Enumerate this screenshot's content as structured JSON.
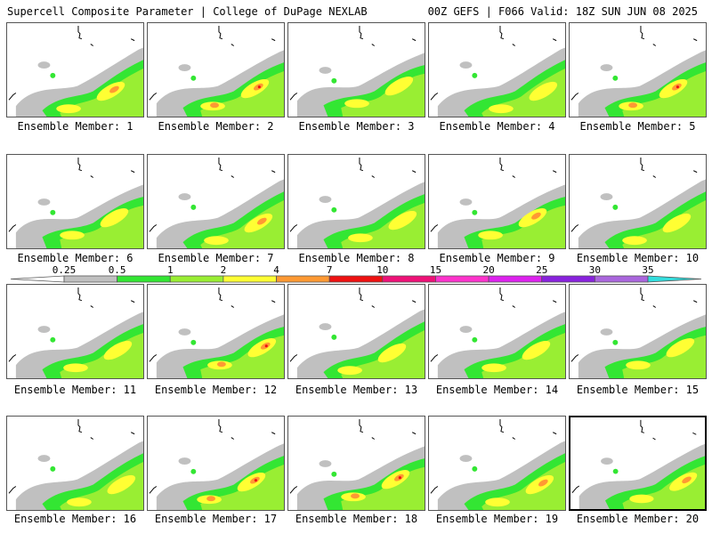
{
  "header": {
    "title_left": "Supercell Composite Parameter | College of DuPage NEXLAB",
    "title_right": "00Z GEFS | F066 Valid: 18Z SUN JUN 08 2025"
  },
  "colors": {
    "map_line": "#000000",
    "panel_border": "#555555",
    "selected_border": "#000000"
  },
  "legend": {
    "levels": [
      "0.25",
      "0.5",
      "1",
      "2",
      "4",
      "7",
      "10",
      "15",
      "20",
      "25",
      "30",
      "35"
    ],
    "colors": [
      "#ffffff",
      "#c0c0c0",
      "#33e633",
      "#99ee33",
      "#ffff33",
      "#ff9933",
      "#ee1111",
      "#ee1177",
      "#ff33cc",
      "#dd22ee",
      "#8822dd",
      "#aa66dd",
      "#33dddd"
    ]
  },
  "panels": [
    {
      "label": "Ensemble Member: 1",
      "selected": false,
      "intensity": 1
    },
    {
      "label": "Ensemble Member: 2",
      "selected": false,
      "intensity": 2
    },
    {
      "label": "Ensemble Member: 3",
      "selected": false,
      "intensity": 0
    },
    {
      "label": "Ensemble Member: 4",
      "selected": false,
      "intensity": 0
    },
    {
      "label": "Ensemble Member: 5",
      "selected": false,
      "intensity": 2
    },
    {
      "label": "Ensemble Member: 6",
      "selected": false,
      "intensity": 0
    },
    {
      "label": "Ensemble Member: 7",
      "selected": false,
      "intensity": 1
    },
    {
      "label": "Ensemble Member: 8",
      "selected": false,
      "intensity": 0
    },
    {
      "label": "Ensemble Member: 9",
      "selected": false,
      "intensity": 1
    },
    {
      "label": "Ensemble Member: 10",
      "selected": false,
      "intensity": 0
    },
    {
      "label": "Ensemble Member: 11",
      "selected": false,
      "intensity": 0
    },
    {
      "label": "Ensemble Member: 12",
      "selected": false,
      "intensity": 2
    },
    {
      "label": "Ensemble Member: 13",
      "selected": false,
      "intensity": 0
    },
    {
      "label": "Ensemble Member: 14",
      "selected": false,
      "intensity": 0
    },
    {
      "label": "Ensemble Member: 15",
      "selected": false,
      "intensity": 0
    },
    {
      "label": "Ensemble Member: 16",
      "selected": false,
      "intensity": 0
    },
    {
      "label": "Ensemble Member: 17",
      "selected": false,
      "intensity": 2
    },
    {
      "label": "Ensemble Member: 18",
      "selected": false,
      "intensity": 2
    },
    {
      "label": "Ensemble Member: 19",
      "selected": false,
      "intensity": 1
    },
    {
      "label": "Ensemble Member: 20",
      "selected": true,
      "intensity": 1
    }
  ]
}
